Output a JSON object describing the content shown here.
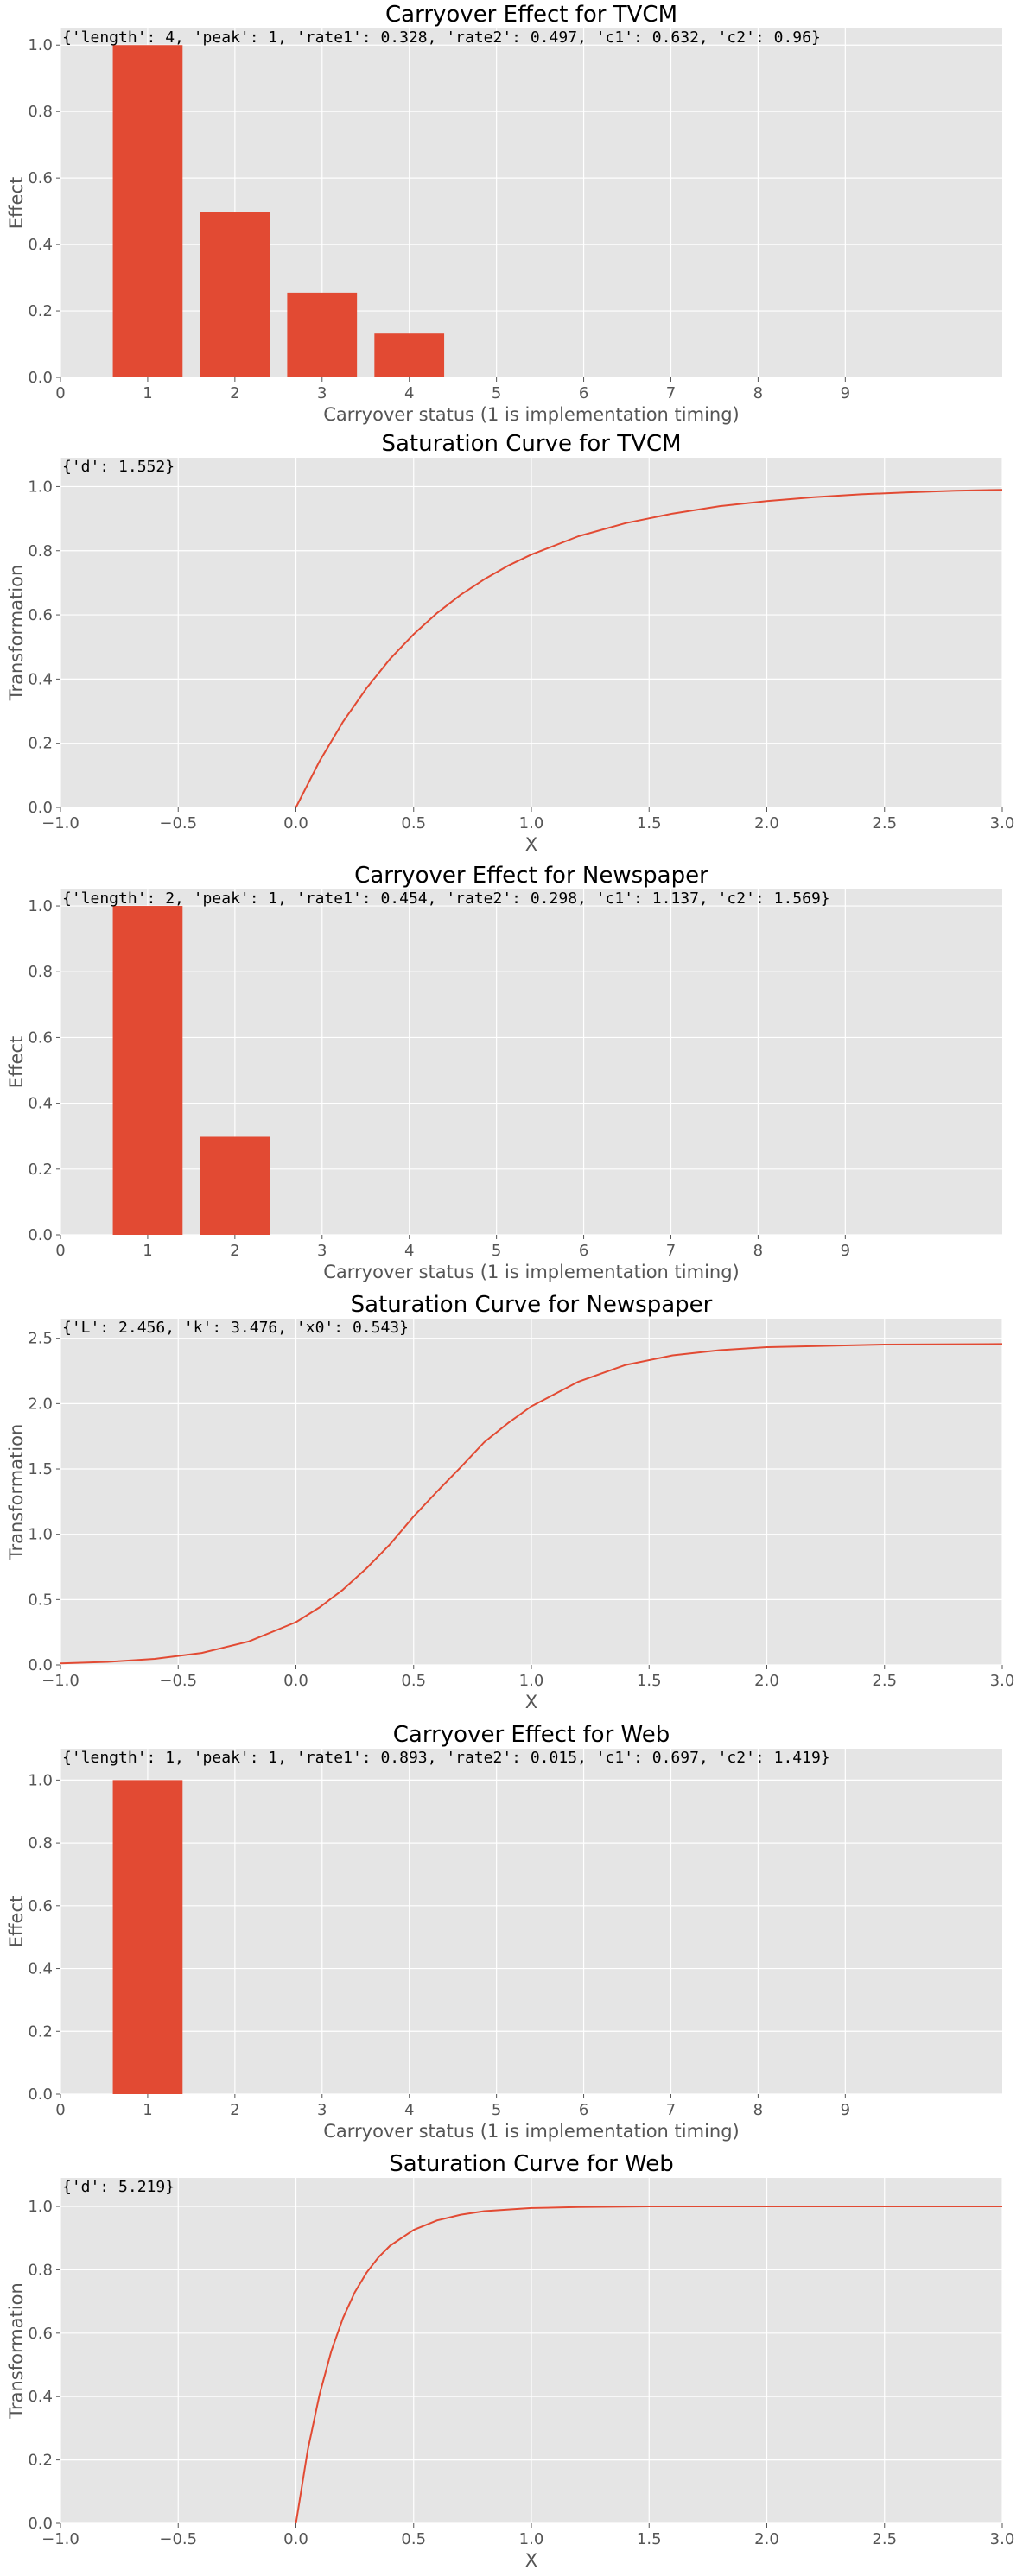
{
  "colors": {
    "bar": "#e24a33",
    "line": "#e24a33",
    "panel": "#e5e5e5",
    "grid": "#ffffff",
    "tick_text": "#555555"
  },
  "chart_data": [
    {
      "type": "bar",
      "title": "Carryover Effect for TVCM",
      "annotation": "{'length': 4, 'peak': 1, 'rate1': 0.328, 'rate2': 0.497, 'c1': 0.632, 'c2': 0.96}",
      "xlabel": "Carryover status (1 is implementation timing)",
      "ylabel": "Effect",
      "x": [
        1,
        2,
        3,
        4
      ],
      "values": [
        1.0,
        0.497,
        0.255,
        0.132
      ],
      "xlim": [
        0,
        10.8
      ],
      "ylim": [
        0,
        1.05
      ],
      "xticks": [
        0,
        1,
        2,
        3,
        4,
        5,
        6,
        7,
        8,
        9
      ],
      "yticks": [
        0.0,
        0.2,
        0.4,
        0.6,
        0.8,
        1.0
      ],
      "ytick_labels": [
        "0.0",
        "0.2",
        "0.4",
        "0.6",
        "0.8",
        "1.0"
      ],
      "grid": true
    },
    {
      "type": "line",
      "title": "Saturation Curve for TVCM",
      "annotation": "{'d': 1.552}",
      "xlabel": "X",
      "ylabel": "Transformation",
      "x": [
        0.0,
        0.1,
        0.2,
        0.3,
        0.4,
        0.5,
        0.6,
        0.7,
        0.8,
        0.9,
        1.0,
        1.2,
        1.4,
        1.6,
        1.8,
        2.0,
        2.2,
        2.4,
        2.6,
        2.8,
        3.0
      ],
      "y": [
        0.0,
        0.144,
        0.267,
        0.372,
        0.463,
        0.54,
        0.606,
        0.663,
        0.711,
        0.753,
        0.788,
        0.845,
        0.886,
        0.916,
        0.939,
        0.955,
        0.967,
        0.976,
        0.982,
        0.987,
        0.99
      ],
      "xlim": [
        -1.0,
        3.0
      ],
      "ylim": [
        0,
        1.09
      ],
      "xticks": [
        -1.0,
        -0.5,
        0.0,
        0.5,
        1.0,
        1.5,
        2.0,
        2.5,
        3.0
      ],
      "xtick_labels": [
        "−1.0",
        "−0.5",
        "0.0",
        "0.5",
        "1.0",
        "1.5",
        "2.0",
        "2.5",
        "3.0"
      ],
      "yticks": [
        0.0,
        0.2,
        0.4,
        0.6,
        0.8,
        1.0
      ],
      "ytick_labels": [
        "0.0",
        "0.2",
        "0.4",
        "0.6",
        "0.8",
        "1.0"
      ],
      "grid": true
    },
    {
      "type": "bar",
      "title": "Carryover Effect for Newspaper",
      "annotation": "{'length': 2, 'peak': 1, 'rate1': 0.454, 'rate2': 0.298, 'c1': 1.137, 'c2': 1.569}",
      "xlabel": "Carryover status (1 is implementation timing)",
      "ylabel": "Effect",
      "x": [
        1,
        2
      ],
      "values": [
        1.0,
        0.298
      ],
      "xlim": [
        0,
        10.8
      ],
      "ylim": [
        0,
        1.05
      ],
      "xticks": [
        0,
        1,
        2,
        3,
        4,
        5,
        6,
        7,
        8,
        9
      ],
      "yticks": [
        0.0,
        0.2,
        0.4,
        0.6,
        0.8,
        1.0
      ],
      "ytick_labels": [
        "0.0",
        "0.2",
        "0.4",
        "0.6",
        "0.8",
        "1.0"
      ],
      "grid": true
    },
    {
      "type": "line",
      "title": "Saturation Curve for Newspaper",
      "annotation": "{'L': 2.456, 'k': 3.476, 'x0': 0.543}",
      "xlabel": "X",
      "ylabel": "Transformation",
      "x": [
        -1.0,
        -0.8,
        -0.6,
        -0.4,
        -0.2,
        0.0,
        0.1,
        0.2,
        0.3,
        0.4,
        0.5,
        0.6,
        0.7,
        0.8,
        0.9,
        1.0,
        1.2,
        1.4,
        1.6,
        1.8,
        2.0,
        2.5,
        3.0
      ],
      "y": [
        0.011,
        0.023,
        0.046,
        0.092,
        0.18,
        0.327,
        0.44,
        0.576,
        0.74,
        0.924,
        1.137,
        1.328,
        1.514,
        1.705,
        1.85,
        1.979,
        2.168,
        2.296,
        2.369,
        2.409,
        2.432,
        2.452,
        2.456
      ],
      "xlim": [
        -1.0,
        3.0
      ],
      "ylim": [
        0,
        2.65
      ],
      "xticks": [
        -1.0,
        -0.5,
        0.0,
        0.5,
        1.0,
        1.5,
        2.0,
        2.5,
        3.0
      ],
      "xtick_labels": [
        "−1.0",
        "−0.5",
        "0.0",
        "0.5",
        "1.0",
        "1.5",
        "2.0",
        "2.5",
        "3.0"
      ],
      "yticks": [
        0.0,
        0.5,
        1.0,
        1.5,
        2.0,
        2.5
      ],
      "ytick_labels": [
        "0.0",
        "0.5",
        "1.0",
        "1.5",
        "2.0",
        "2.5"
      ],
      "grid": true
    },
    {
      "type": "bar",
      "title": "Carryover Effect for Web",
      "annotation": "{'length': 1, 'peak': 1, 'rate1': 0.893, 'rate2': 0.015, 'c1': 0.697, 'c2': 1.419}",
      "xlabel": "Carryover status (1 is implementation timing)",
      "ylabel": "Effect",
      "x": [
        1
      ],
      "values": [
        1.0
      ],
      "xlim": [
        0,
        10.8
      ],
      "ylim": [
        0,
        1.1
      ],
      "xticks": [
        0,
        1,
        2,
        3,
        4,
        5,
        6,
        7,
        8,
        9
      ],
      "yticks": [
        0.0,
        0.2,
        0.4,
        0.6,
        0.8,
        1.0
      ],
      "ytick_labels": [
        "0.0",
        "0.2",
        "0.4",
        "0.6",
        "0.8",
        "1.0"
      ],
      "grid": true
    },
    {
      "type": "line",
      "title": "Saturation Curve for Web",
      "annotation": "{'d': 5.219}",
      "xlabel": "X",
      "ylabel": "Transformation",
      "x": [
        0.0,
        0.05,
        0.1,
        0.15,
        0.2,
        0.25,
        0.3,
        0.35,
        0.4,
        0.5,
        0.6,
        0.7,
        0.8,
        1.0,
        1.2,
        1.5,
        2.0,
        2.5,
        3.0
      ],
      "y": [
        0.0,
        0.23,
        0.406,
        0.543,
        0.648,
        0.729,
        0.791,
        0.839,
        0.876,
        0.926,
        0.956,
        0.974,
        0.985,
        0.995,
        0.998,
        1.0,
        1.0,
        1.0,
        1.0
      ],
      "xlim": [
        -1.0,
        3.0
      ],
      "ylim": [
        0,
        1.09
      ],
      "xticks": [
        -1.0,
        -0.5,
        0.0,
        0.5,
        1.0,
        1.5,
        2.0,
        2.5,
        3.0
      ],
      "xtick_labels": [
        "−1.0",
        "−0.5",
        "0.0",
        "0.5",
        "1.0",
        "1.5",
        "2.0",
        "2.5",
        "3.0"
      ],
      "yticks": [
        0.0,
        0.2,
        0.4,
        0.6,
        0.8,
        1.0
      ],
      "ytick_labels": [
        "0.0",
        "0.2",
        "0.4",
        "0.6",
        "0.8",
        "1.0"
      ],
      "grid": true
    }
  ]
}
